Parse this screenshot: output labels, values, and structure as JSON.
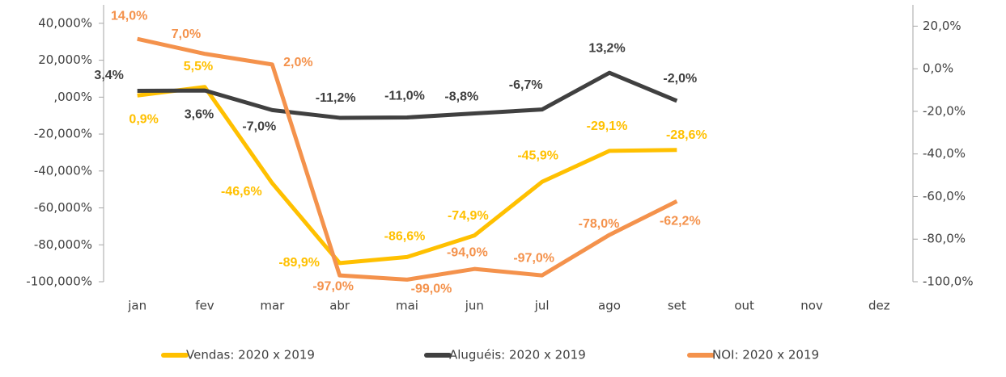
{
  "chart_data": {
    "type": "line",
    "categories": [
      "jan",
      "fev",
      "mar",
      "abr",
      "mai",
      "jun",
      "jul",
      "ago",
      "set",
      "out",
      "nov",
      "dez"
    ],
    "ylim": [
      -100,
      50
    ],
    "yticks": [
      {
        "value": 40,
        "label": "40,000%"
      },
      {
        "value": 20,
        "label": "20,000%"
      },
      {
        "value": 0,
        "label": ",000%"
      },
      {
        "value": -20,
        "label": "-20,000%"
      },
      {
        "value": -40,
        "label": "-40,000%"
      },
      {
        "value": -60,
        "label": "-60,000%"
      },
      {
        "value": -80,
        "label": "-80,000%"
      },
      {
        "value": -100,
        "label": "-100,000%"
      }
    ],
    "y2lim": [
      -100,
      30
    ],
    "y2ticks": [
      {
        "value": 20,
        "label": "20,0%"
      },
      {
        "value": 0,
        "label": "0,0%"
      },
      {
        "value": -20,
        "label": "-20,0%"
      },
      {
        "value": -40,
        "label": "-40,0%"
      },
      {
        "value": -60,
        "label": "-60,0%"
      },
      {
        "value": -80,
        "label": "-80,0%"
      },
      {
        "value": -100,
        "label": "-100,0%"
      }
    ],
    "legend": "bottom",
    "series": [
      {
        "name": "Vendas: 2020 x 2019",
        "color": "#ffc000",
        "values": [
          0.9,
          5.5,
          -46.6,
          -89.9,
          -86.6,
          -74.9,
          -45.9,
          -29.1,
          -28.6,
          null,
          null,
          null
        ],
        "value_labels": [
          "0,9%",
          "5,5%",
          "-46,6%",
          "-89,9%",
          "-86,6%",
          "-74,9%",
          "-45,9%",
          "-29,1%",
          "-28,6%",
          null,
          null,
          null
        ]
      },
      {
        "name": "Aluguéis: 2020 x 2019",
        "color": "#404040",
        "values": [
          3.4,
          3.6,
          -7.0,
          -11.2,
          -11.0,
          -8.8,
          -6.7,
          13.2,
          -2.0,
          null,
          null,
          null
        ],
        "value_labels": [
          "3,4%",
          "3,6%",
          "-7,0%",
          "-11,2%",
          "-11,0%",
          "-8,8%",
          "-6,7%",
          "13,2%",
          "-2,0%",
          null,
          null,
          null
        ]
      },
      {
        "name": "NOI: 2020 x 2019",
        "color": "#f4924c",
        "axis": "y2",
        "values": [
          14.0,
          7.0,
          2.0,
          -97.0,
          -99.0,
          -94.0,
          -97.0,
          -78.0,
          -62.2,
          null,
          null,
          null
        ],
        "value_labels": [
          "14,0%",
          "7,0%",
          "2,0%",
          "-97,0%",
          "-99,0%",
          "-94,0%",
          "-97,0%",
          "-78,0%",
          "-62,2%",
          null,
          null,
          null
        ]
      }
    ]
  }
}
